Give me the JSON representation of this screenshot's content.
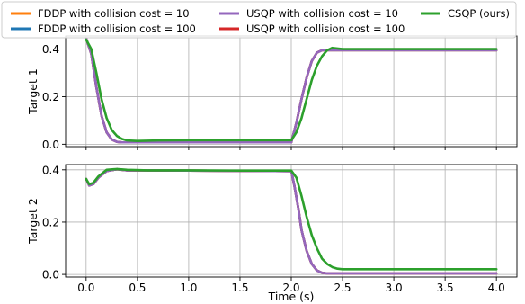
{
  "chart_data": {
    "type": "line",
    "legend": {
      "placement": "top",
      "entries": [
        {
          "label": "FDDP with collision cost = 10",
          "color": "#ff7f0e"
        },
        {
          "label": "FDDP with collision cost = 100",
          "color": "#1f77b4"
        },
        {
          "label": "USQP with collision cost = 10",
          "color": "#9467bd"
        },
        {
          "label": "USQP with collision cost = 100",
          "color": "#d62728"
        },
        {
          "label": "CSQP (ours)",
          "color": "#2ca02c"
        }
      ]
    },
    "xlabel": "Time (s)",
    "xlim": [
      -0.2,
      4.2
    ],
    "xticks": [
      0.0,
      0.5,
      1.0,
      1.5,
      2.0,
      2.5,
      3.0,
      3.5,
      4.0
    ],
    "xtick_labels": [
      "0.0",
      "0.5",
      "1.0",
      "1.5",
      "2.0",
      "2.5",
      "3.0",
      "3.5",
      "4.0"
    ],
    "grid": true,
    "panels": [
      {
        "ylabel": "Target 1",
        "ylim": [
          -0.01,
          0.455
        ],
        "yticks": [
          0.0,
          0.2,
          0.4
        ],
        "ytick_labels": [
          "0.0",
          "0.2",
          "0.4"
        ],
        "series": [
          {
            "name": "FDDP with collision cost = 10",
            "color": "#ff7f0e",
            "x": [
              0.0,
              0.05,
              0.1,
              0.15,
              0.2,
              0.25,
              0.3,
              0.35,
              0.4,
              0.6,
              1.0,
              2.0,
              2.05,
              2.1,
              2.15,
              2.2,
              2.25,
              2.3,
              2.4,
              2.6,
              4.0
            ],
            "y": [
              0.445,
              0.38,
              0.24,
              0.12,
              0.05,
              0.02,
              0.01,
              0.008,
              0.008,
              0.008,
              0.008,
              0.008,
              0.09,
              0.19,
              0.28,
              0.35,
              0.385,
              0.395,
              0.395,
              0.395,
              0.395
            ]
          },
          {
            "name": "FDDP with collision cost = 100",
            "color": "#1f77b4",
            "x": [
              0.0,
              0.05,
              0.1,
              0.15,
              0.2,
              0.25,
              0.3,
              0.35,
              0.4,
              0.6,
              1.0,
              2.0,
              2.05,
              2.1,
              2.15,
              2.2,
              2.25,
              2.3,
              2.4,
              2.6,
              4.0
            ],
            "y": [
              0.445,
              0.38,
              0.24,
              0.12,
              0.05,
              0.02,
              0.01,
              0.008,
              0.008,
              0.008,
              0.008,
              0.008,
              0.09,
              0.19,
              0.28,
              0.35,
              0.385,
              0.395,
              0.395,
              0.395,
              0.395
            ]
          },
          {
            "name": "USQP with collision cost = 100",
            "color": "#d62728",
            "x": [
              0.0,
              0.05,
              0.1,
              0.15,
              0.2,
              0.25,
              0.3,
              0.35,
              0.4,
              0.6,
              1.0,
              2.0,
              2.05,
              2.1,
              2.15,
              2.2,
              2.25,
              2.3,
              2.4,
              2.6,
              4.0
            ],
            "y": [
              0.445,
              0.38,
              0.24,
              0.12,
              0.05,
              0.02,
              0.01,
              0.008,
              0.008,
              0.008,
              0.008,
              0.008,
              0.09,
              0.19,
              0.28,
              0.35,
              0.385,
              0.395,
              0.395,
              0.395,
              0.395
            ]
          },
          {
            "name": "USQP with collision cost = 10",
            "color": "#9467bd",
            "x": [
              0.0,
              0.05,
              0.1,
              0.15,
              0.2,
              0.25,
              0.3,
              0.35,
              0.4,
              0.6,
              1.0,
              2.0,
              2.05,
              2.1,
              2.15,
              2.2,
              2.25,
              2.3,
              2.4,
              2.6,
              4.0
            ],
            "y": [
              0.445,
              0.38,
              0.24,
              0.12,
              0.05,
              0.02,
              0.01,
              0.008,
              0.008,
              0.008,
              0.008,
              0.008,
              0.09,
              0.19,
              0.28,
              0.35,
              0.385,
              0.395,
              0.395,
              0.395,
              0.395
            ]
          },
          {
            "name": "CSQP (ours)",
            "color": "#2ca02c",
            "x": [
              0.0,
              0.05,
              0.1,
              0.15,
              0.2,
              0.25,
              0.3,
              0.35,
              0.4,
              0.5,
              0.7,
              1.0,
              1.5,
              2.0,
              2.05,
              2.1,
              2.15,
              2.2,
              2.25,
              2.3,
              2.35,
              2.4,
              2.5,
              2.7,
              4.0
            ],
            "y": [
              0.44,
              0.4,
              0.3,
              0.19,
              0.11,
              0.06,
              0.035,
              0.022,
              0.016,
              0.014,
              0.016,
              0.017,
              0.017,
              0.017,
              0.05,
              0.11,
              0.19,
              0.27,
              0.33,
              0.37,
              0.395,
              0.405,
              0.4,
              0.4,
              0.4
            ]
          }
        ]
      },
      {
        "ylabel": "Target 2",
        "ylim": [
          -0.01,
          0.42
        ],
        "yticks": [
          0.0,
          0.2,
          0.4
        ],
        "ytick_labels": [
          "0.0",
          "0.2",
          "0.4"
        ],
        "series": [
          {
            "name": "FDDP with collision cost = 10",
            "color": "#ff7f0e",
            "x": [
              0.0,
              0.03,
              0.07,
              0.12,
              0.2,
              0.3,
              0.4,
              0.6,
              1.0,
              1.5,
              2.0,
              2.03,
              2.07,
              2.1,
              2.15,
              2.2,
              2.25,
              2.3,
              2.35,
              2.4,
              2.5,
              2.7,
              4.0
            ],
            "y": [
              0.365,
              0.34,
              0.345,
              0.37,
              0.395,
              0.402,
              0.398,
              0.398,
              0.397,
              0.396,
              0.395,
              0.34,
              0.25,
              0.17,
              0.09,
              0.04,
              0.015,
              0.006,
              0.004,
              0.004,
              0.004,
              0.004,
              0.004
            ]
          },
          {
            "name": "FDDP with collision cost = 100",
            "color": "#1f77b4",
            "x": [
              0.0,
              0.03,
              0.07,
              0.12,
              0.2,
              0.3,
              0.4,
              0.6,
              1.0,
              1.5,
              2.0,
              2.03,
              2.07,
              2.1,
              2.15,
              2.2,
              2.25,
              2.3,
              2.35,
              2.4,
              2.5,
              2.7,
              4.0
            ],
            "y": [
              0.365,
              0.34,
              0.345,
              0.37,
              0.395,
              0.402,
              0.398,
              0.398,
              0.397,
              0.396,
              0.395,
              0.34,
              0.25,
              0.17,
              0.09,
              0.04,
              0.015,
              0.006,
              0.004,
              0.004,
              0.004,
              0.004,
              0.004
            ]
          },
          {
            "name": "USQP with collision cost = 100",
            "color": "#d62728",
            "x": [
              0.0,
              0.03,
              0.07,
              0.12,
              0.2,
              0.3,
              0.4,
              0.6,
              1.0,
              1.5,
              2.0,
              2.03,
              2.07,
              2.1,
              2.15,
              2.2,
              2.25,
              2.3,
              2.35,
              2.4,
              2.5,
              2.7,
              4.0
            ],
            "y": [
              0.365,
              0.34,
              0.345,
              0.37,
              0.395,
              0.402,
              0.398,
              0.398,
              0.397,
              0.396,
              0.395,
              0.34,
              0.25,
              0.17,
              0.09,
              0.04,
              0.015,
              0.006,
              0.004,
              0.004,
              0.004,
              0.004,
              0.004
            ]
          },
          {
            "name": "USQP with collision cost = 10",
            "color": "#9467bd",
            "x": [
              0.0,
              0.03,
              0.07,
              0.12,
              0.2,
              0.3,
              0.4,
              0.6,
              1.0,
              1.5,
              2.0,
              2.03,
              2.07,
              2.1,
              2.15,
              2.2,
              2.25,
              2.3,
              2.35,
              2.4,
              2.5,
              2.7,
              4.0
            ],
            "y": [
              0.365,
              0.34,
              0.345,
              0.37,
              0.395,
              0.402,
              0.398,
              0.398,
              0.397,
              0.396,
              0.395,
              0.34,
              0.25,
              0.17,
              0.09,
              0.04,
              0.015,
              0.006,
              0.004,
              0.004,
              0.004,
              0.004,
              0.004
            ]
          },
          {
            "name": "CSQP (ours)",
            "color": "#2ca02c",
            "x": [
              0.0,
              0.03,
              0.07,
              0.12,
              0.2,
              0.3,
              0.4,
              0.6,
              1.0,
              1.5,
              2.0,
              2.05,
              2.1,
              2.15,
              2.2,
              2.25,
              2.3,
              2.35,
              2.4,
              2.45,
              2.5,
              2.6,
              2.8,
              4.0
            ],
            "y": [
              0.365,
              0.345,
              0.35,
              0.375,
              0.4,
              0.403,
              0.4,
              0.398,
              0.398,
              0.397,
              0.397,
              0.37,
              0.3,
              0.22,
              0.15,
              0.1,
              0.06,
              0.04,
              0.028,
              0.022,
              0.02,
              0.02,
              0.02,
              0.02
            ]
          }
        ]
      }
    ]
  }
}
